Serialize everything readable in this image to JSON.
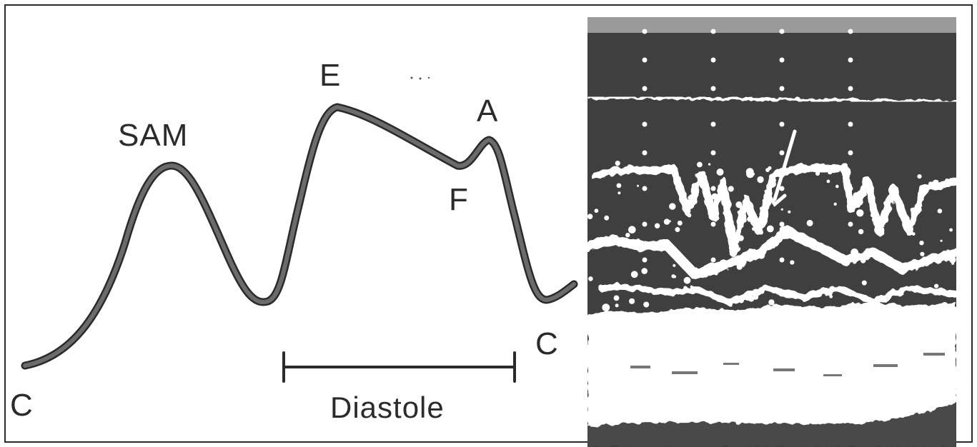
{
  "figure": {
    "labels": {
      "c_left": "C",
      "sam": "SAM",
      "e": "E",
      "a": "A",
      "f": "F",
      "c_right": "C",
      "diastole": "Diastole"
    },
    "colors": {
      "trace": "#6b6b6b",
      "trace_outline": "#2a2a2a",
      "text": "#2b2b2b",
      "echo_background": "#3f3f3f",
      "echo_signal": "#ffffff"
    }
  }
}
